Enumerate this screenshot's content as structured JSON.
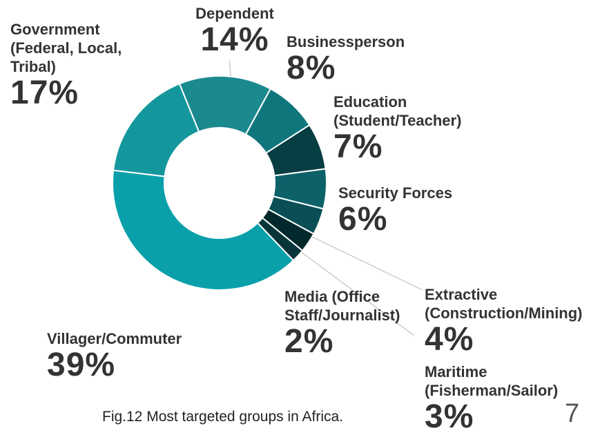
{
  "chart_data": {
    "type": "donut",
    "categories": [
      "Dependent",
      "Businessperson",
      "Education (Student/Teacher)",
      "Security Forces",
      "Extractive (Construction/Mining)",
      "Maritime (Fisherman/Sailor)",
      "Media (Office Staff/Journalist)",
      "Villager/Commuter",
      "Government (Federal, Local, Tribal)"
    ],
    "values": [
      14,
      8,
      7,
      6,
      4,
      3,
      2,
      39,
      17
    ],
    "value_labels": [
      "14%",
      "8%",
      "7%",
      "6%",
      "4%",
      "3%",
      "2%",
      "39%",
      "17%"
    ],
    "colors": [
      "#1a8a8f",
      "#0f767c",
      "#073e43",
      "#0d626a",
      "#0a4f56",
      "#022a2d",
      "#073539",
      "#0aa0aa",
      "#13979d"
    ],
    "caption": "Fig.12 Most targeted groups in Africa.",
    "page_number": "7"
  }
}
